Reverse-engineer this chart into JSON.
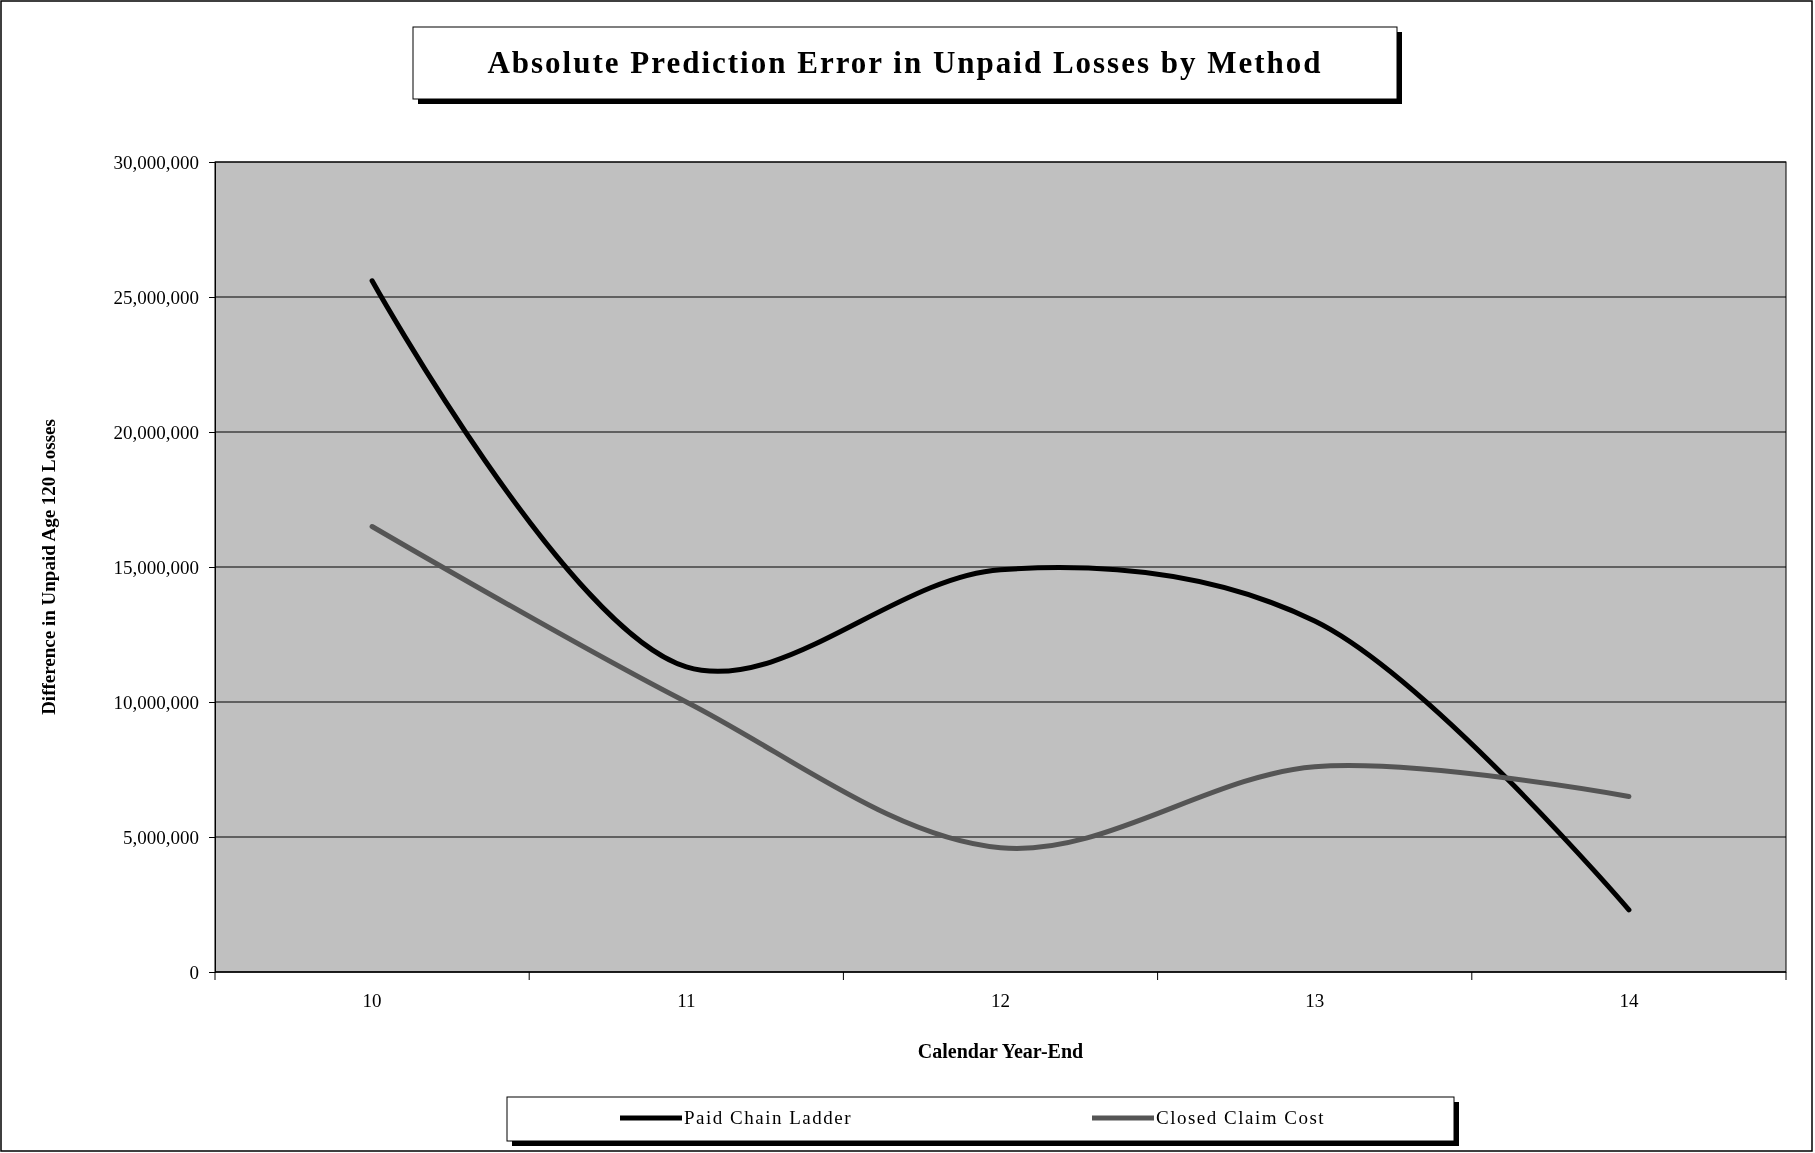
{
  "chart_data": {
    "type": "line",
    "title": "Absolute Prediction Error in Unpaid Losses by Method",
    "xlabel": "Calendar Year-End",
    "ylabel": "Difference in Unpaid Age 120 Losses",
    "categories": [
      "10",
      "11",
      "12",
      "13",
      "14"
    ],
    "series": [
      {
        "name": "Paid Chain Ladder",
        "color": "#000000",
        "values": [
          25600000,
          11300000,
          14900000,
          13000000,
          2300000
        ]
      },
      {
        "name": "Closed Claim Cost",
        "color": "#555555",
        "values": [
          16500000,
          10000000,
          4600000,
          7600000,
          6500000
        ]
      }
    ],
    "ylim": [
      0,
      30000000
    ],
    "yticks": [
      {
        "value": 0,
        "label": "0"
      },
      {
        "value": 5000000,
        "label": "5,000,000"
      },
      {
        "value": 10000000,
        "label": "10,000,000"
      },
      {
        "value": 15000000,
        "label": "15,000,000"
      },
      {
        "value": 20000000,
        "label": "20,000,000"
      },
      {
        "value": 25000000,
        "label": "25,000,000"
      },
      {
        "value": 30000000,
        "label": "30,000,000"
      }
    ],
    "grid": "y",
    "legend": "bottom",
    "marker": "none",
    "line_style": "solid"
  }
}
